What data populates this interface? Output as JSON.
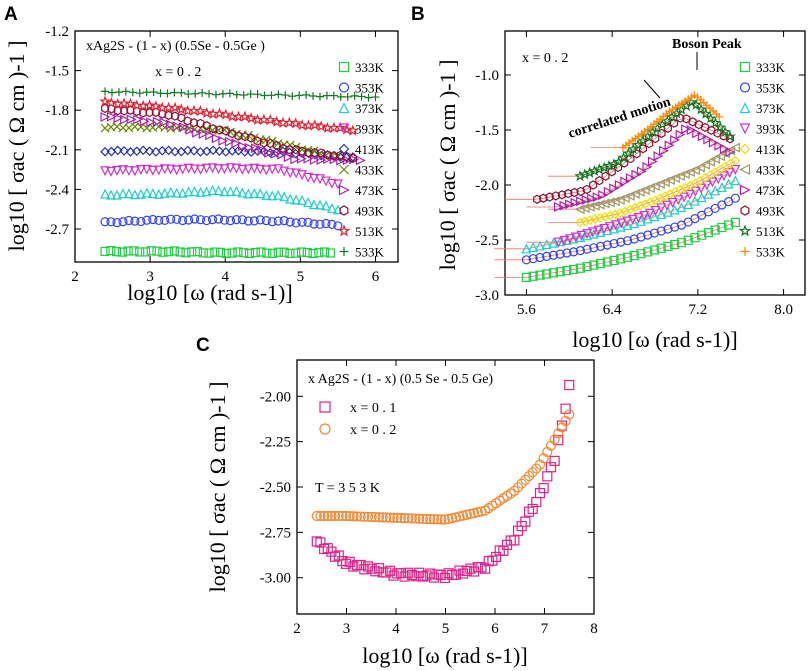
{
  "figure": {
    "panels": [
      "A",
      "B",
      "C"
    ]
  },
  "chart_data": [
    {
      "panel": "A",
      "type": "scatter",
      "title": "",
      "annotation_material": "xAg2S - (1 - x) (0.5Se - 0.5Ge )",
      "annotation_x": "x = 0 . 2",
      "xlabel": "log10 [ω (rad s-1)]",
      "ylabel": "log10 [ σac ( Ω cm )-1 ]",
      "xlim": [
        2,
        6.3
      ],
      "ylim": [
        -2.95,
        -1.2
      ],
      "xticks": [
        "2",
        "3",
        "4",
        "5",
        "6"
      ],
      "yticks": [
        "-1.2",
        "-1.5",
        "-1.8",
        "-2.1",
        "-2.4",
        "-2.7"
      ],
      "series": [
        {
          "name": "333K",
          "marker": "square",
          "color": "#22cc44",
          "x_start": 2.4,
          "x_end": 5.4,
          "y": [
            -2.87,
            -2.87,
            -2.88,
            -2.88,
            -2.88
          ]
        },
        {
          "name": "353K",
          "marker": "circle",
          "color": "#3344ee",
          "x_start": 2.4,
          "x_end": 5.5,
          "y": [
            -2.65,
            -2.63,
            -2.63,
            -2.64,
            -2.67
          ]
        },
        {
          "name": "373K",
          "marker": "triangle-up",
          "color": "#22cccc",
          "x_start": 2.4,
          "x_end": 5.5,
          "y": [
            -2.44,
            -2.43,
            -2.41,
            -2.45,
            -2.55
          ]
        },
        {
          "name": "393K",
          "marker": "triangle-down",
          "color": "#cc33cc",
          "x_start": 2.4,
          "x_end": 5.5,
          "y": [
            -2.26,
            -2.25,
            -2.24,
            -2.25,
            -2.36
          ]
        },
        {
          "name": "413K",
          "marker": "diamond",
          "color": "#2233aa",
          "x_start": 2.4,
          "x_end": 5.7,
          "y": [
            -2.11,
            -2.11,
            -2.11,
            -2.12,
            -2.16
          ]
        },
        {
          "name": "433K",
          "marker": "x",
          "color": "#668800",
          "x_start": 2.4,
          "x_end": 5.5,
          "y": [
            -1.93,
            -1.93,
            -1.95,
            -2.05,
            -2.16
          ]
        },
        {
          "name": "473K",
          "marker": "triangle-right",
          "color": "#aa22aa",
          "x_start": 2.4,
          "x_end": 5.8,
          "y": [
            -1.85,
            -1.9,
            -2.05,
            -2.17,
            -2.18
          ]
        },
        {
          "name": "493K",
          "marker": "hexagon",
          "color": "#881133",
          "x_start": 2.4,
          "x_end": 5.7,
          "y": [
            -1.79,
            -1.83,
            -1.97,
            -2.1,
            -2.16
          ]
        },
        {
          "name": "513K",
          "marker": "star",
          "color": "#dd2233",
          "x_start": 2.4,
          "x_end": 5.7,
          "y": [
            -1.74,
            -1.78,
            -1.84,
            -1.9,
            -1.95
          ]
        },
        {
          "name": "533K",
          "marker": "plus",
          "color": "#117722",
          "x_start": 2.4,
          "x_end": 6.0,
          "y": [
            -1.66,
            -1.67,
            -1.68,
            -1.69,
            -1.7
          ]
        }
      ]
    },
    {
      "panel": "B",
      "type": "scatter",
      "title": "",
      "annotation_x": "x = 0 . 2",
      "annotation_boson": "Boson Peak",
      "annotation_correlated": "correlated motion",
      "xlabel": "log10 [ω (rad s-1)]",
      "ylabel": "log10 [ σac ( Ω cm )-1 ]",
      "xlim": [
        5.4,
        8.2
      ],
      "ylim": [
        -3.0,
        -0.6
      ],
      "xticks": [
        "5.6",
        "6.4",
        "7.2",
        "8.0"
      ],
      "yticks": [
        "-1.0",
        "-1.5",
        "-2.0",
        "-2.5",
        "-3.0"
      ],
      "series": [
        {
          "name": "333K",
          "marker": "square",
          "color": "#22cc44",
          "x_start": 5.6,
          "x_end": 7.55,
          "y": [
            -2.84,
            -2.76,
            -2.65,
            -2.52,
            -2.34
          ]
        },
        {
          "name": "353K",
          "marker": "circle",
          "color": "#3344ee",
          "x_start": 5.6,
          "x_end": 7.55,
          "y": [
            -2.68,
            -2.6,
            -2.5,
            -2.36,
            -2.12
          ]
        },
        {
          "name": "373K",
          "marker": "triangle-up",
          "color": "#22cccc",
          "x_start": 5.6,
          "x_end": 7.55,
          "y": [
            -2.58,
            -2.48,
            -2.36,
            -2.2,
            -1.96
          ]
        },
        {
          "name": "393K",
          "marker": "triangle-down",
          "color": "#cc33cc",
          "x_start": 5.9,
          "x_end": 7.55,
          "y": [
            -2.52,
            -2.4,
            -2.27,
            -2.08,
            -1.86
          ]
        },
        {
          "name": "413K",
          "marker": "diamond",
          "color": "#eedd00",
          "x_start": 6.1,
          "x_end": 7.55,
          "y": [
            -2.34,
            -2.26,
            -2.13,
            -1.98,
            -1.78
          ]
        },
        {
          "name": "433K",
          "marker": "triangle-left",
          "color": "#999966",
          "x_start": 6.1,
          "x_end": 7.55,
          "y": [
            -2.22,
            -2.14,
            -2.0,
            -1.86,
            -1.66
          ]
        },
        {
          "name": "473K",
          "marker": "triangle-right",
          "color": "#aa22aa",
          "x_start": 5.9,
          "x_end": 7.5,
          "y": [
            -2.2,
            -2.1,
            -1.86,
            -1.48,
            -1.7
          ]
        },
        {
          "name": "493K",
          "marker": "hexagon",
          "color": "#881133",
          "x_start": 5.7,
          "x_end": 7.5,
          "y": [
            -2.13,
            -2.05,
            -1.74,
            -1.38,
            -1.58
          ]
        },
        {
          "name": "513K",
          "marker": "star",
          "color": "#117722",
          "x_start": 6.1,
          "x_end": 7.5,
          "y": [
            -1.92,
            -1.8,
            -1.5,
            -1.24,
            -1.56
          ]
        },
        {
          "name": "533K",
          "marker": "plus",
          "color": "#ff8800",
          "x_start": 6.5,
          "x_end": 7.4,
          "y": [
            -1.66,
            -1.5,
            -1.32,
            -1.18,
            -1.38
          ]
        }
      ]
    },
    {
      "panel": "C",
      "type": "scatter",
      "title": "",
      "annotation_material": "x Ag2S - (1 - x) (0.5 Se - 0.5 Ge)",
      "annotation_temp": "T = 3 5 3 K",
      "xlabel": "log10 [ω (rad s-1)]",
      "ylabel": "log10 [ σac ( Ω cm )-1 ]",
      "xlim": [
        2,
        8
      ],
      "ylim": [
        -3.2,
        -1.8
      ],
      "xticks": [
        "2",
        "3",
        "4",
        "5",
        "6",
        "7",
        "8"
      ],
      "yticks": [
        "-2.00",
        "-2.25",
        "-2.50",
        "-2.75",
        "-3.00"
      ],
      "series": [
        {
          "name": "x = 0 . 1",
          "marker": "square",
          "color": "#dd2288",
          "x": [
            2.4,
            3.0,
            4.0,
            5.0,
            5.8,
            6.4,
            6.9,
            7.2,
            7.4,
            7.5
          ],
          "y": [
            -2.8,
            -2.92,
            -2.98,
            -2.99,
            -2.94,
            -2.78,
            -2.55,
            -2.35,
            -2.1,
            -1.95
          ]
        },
        {
          "name": "x = 0 . 2",
          "marker": "circle",
          "color": "#ee8833",
          "x": [
            2.4,
            3.0,
            4.0,
            5.0,
            5.8,
            6.4,
            6.9,
            7.2,
            7.4,
            7.5
          ],
          "y": [
            -2.66,
            -2.66,
            -2.67,
            -2.68,
            -2.63,
            -2.52,
            -2.38,
            -2.24,
            -2.15,
            -2.1
          ]
        }
      ]
    }
  ]
}
